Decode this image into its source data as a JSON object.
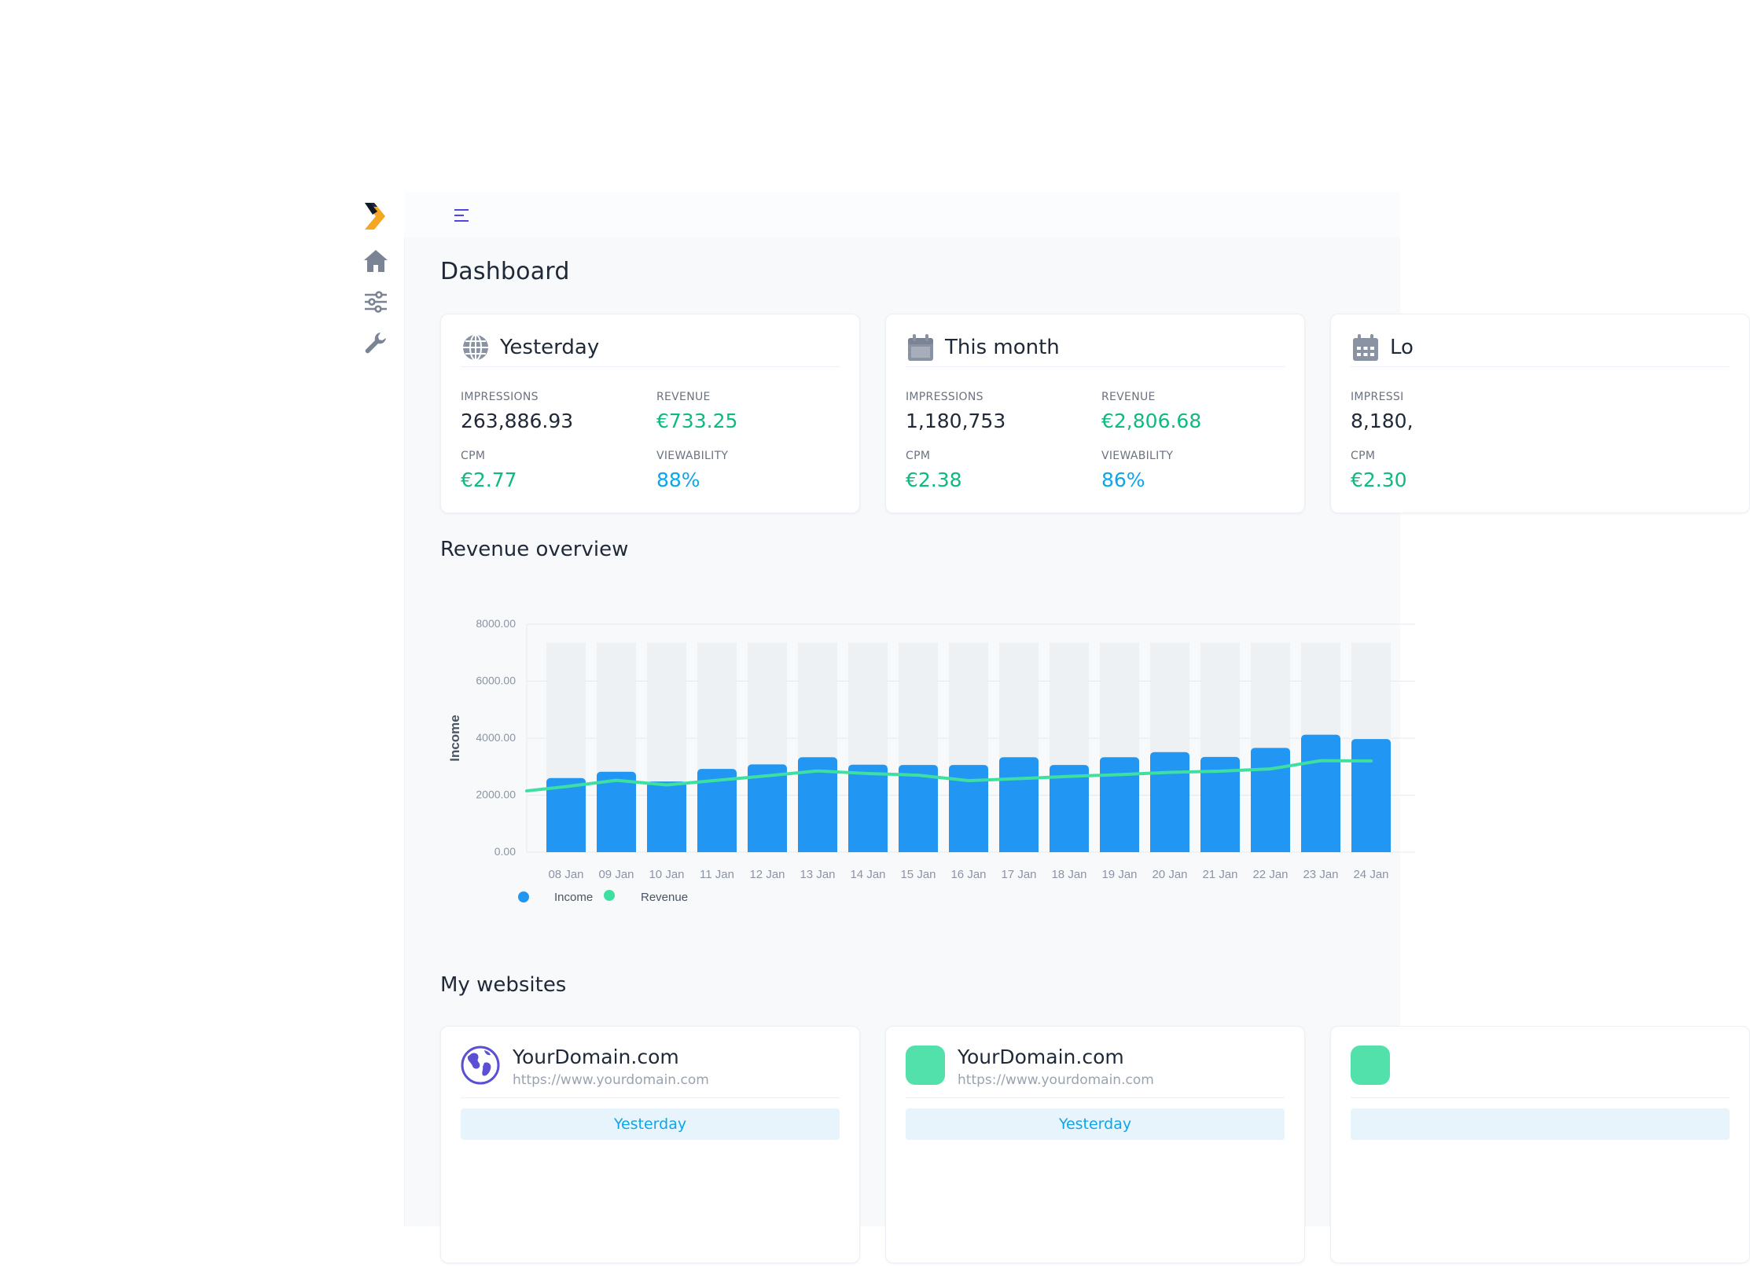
{
  "page": {
    "title": "Dashboard"
  },
  "sidebar": {
    "logo": "brand-chevron-logo",
    "items": [
      {
        "icon": "home-icon"
      },
      {
        "icon": "sliders-icon"
      },
      {
        "icon": "wrench-icon"
      }
    ]
  },
  "topbar": {
    "menu_icon": "hamburger-icon"
  },
  "stat_cards": [
    {
      "title": "Yesterday",
      "icon": "globe-icon",
      "impressions_label": "IMPRESSIONS",
      "impressions": "263,886.93",
      "revenue_label": "REVENUE",
      "revenue": "€733.25",
      "cpm_label": "CPM",
      "cpm": "€2.77",
      "viewability_label": "VIEWABILITY",
      "viewability": "88%"
    },
    {
      "title": "This month",
      "icon": "calendar-icon",
      "impressions_label": "IMPRESSIONS",
      "impressions": "1,180,753",
      "revenue_label": "REVENUE",
      "revenue": "€2,806.68",
      "cpm_label": "CPM",
      "cpm": "€2.38",
      "viewability_label": "VIEWABILITY",
      "viewability": "86%"
    },
    {
      "title": "Lo",
      "icon": "calendar-grid-icon",
      "impressions_label": "IMPRESSI",
      "impressions": "8,180,",
      "cpm_label": "CPM",
      "cpm": "€2.30"
    }
  ],
  "revenue_overview": {
    "title": "Revenue overview"
  },
  "chart_data": {
    "type": "bar",
    "ylabel": "Income",
    "ylim": [
      0,
      8000
    ],
    "yticks": [
      "0.00",
      "2000.00",
      "4000.00",
      "6000.00",
      "8000.00"
    ],
    "categories": [
      "08 Jan",
      "09 Jan",
      "10 Jan",
      "11 Jan",
      "12 Jan",
      "13 Jan",
      "14 Jan",
      "15 Jan",
      "16 Jan",
      "17 Jan",
      "18 Jan",
      "19 Jan",
      "20 Jan",
      "21 Jan",
      "22 Jan",
      "23 Jan",
      "24 Jan"
    ],
    "series": [
      {
        "name": "Income",
        "kind": "bar",
        "color": "#2196f3",
        "values": [
          2600,
          2820,
          2480,
          2920,
          3080,
          3330,
          3070,
          3060,
          3060,
          3330,
          3060,
          3330,
          3510,
          3340,
          3660,
          4120,
          3970
        ]
      },
      {
        "name": "Revenue",
        "kind": "line",
        "color": "#3ee0a2",
        "values": [
          2300,
          2520,
          2360,
          2520,
          2680,
          2850,
          2760,
          2700,
          2510,
          2580,
          2660,
          2720,
          2800,
          2840,
          2920,
          3210,
          3200
        ]
      }
    ],
    "background_max": 7350,
    "legend": "bottom-left",
    "grid": true
  },
  "websites": {
    "title": "My websites",
    "items": [
      {
        "name": "YourDomain.com",
        "url": "https://www.yourdomain.com",
        "avatar": "globe-americas-icon",
        "tab": "Yesterday"
      },
      {
        "name": "YourDomain.com",
        "url": "https://www.yourdomain.com",
        "avatar": "green-square-avatar",
        "tab": "Yesterday"
      },
      {
        "avatar": "green-square-avatar"
      }
    ]
  },
  "colors": {
    "accent_blue": "#2196f3",
    "accent_green": "#10b981",
    "revenue_line": "#3ee0a2",
    "viewability_blue": "#0ea5e9",
    "logo_orange": "#f5a623"
  }
}
